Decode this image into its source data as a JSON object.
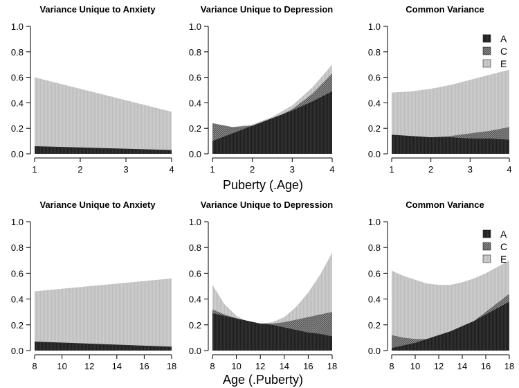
{
  "chart_data": [
    {
      "type": "area",
      "title": "Variance Unique to Anxiety",
      "x": [
        1,
        4
      ],
      "xticks": [
        "1",
        "2",
        "3",
        "4"
      ],
      "yticks": [
        "0.0",
        "0.2",
        "0.4",
        "0.6",
        "0.8",
        "1.0"
      ],
      "xlim": [
        1,
        4
      ],
      "ylim": [
        0,
        1
      ],
      "series": [
        {
          "name": "A",
          "values": [
            0.06,
            0.03
          ]
        },
        {
          "name": "C",
          "values": [
            0.0,
            0.0
          ]
        },
        {
          "name": "E",
          "values": [
            0.6,
            0.33
          ]
        }
      ],
      "legend": null
    },
    {
      "type": "area",
      "title": "Variance Unique to Depression",
      "x": [
        1,
        1.5,
        2,
        2.5,
        3,
        3.5,
        4
      ],
      "xticks": [
        "1",
        "2",
        "3",
        "4"
      ],
      "yticks": [
        "0.0",
        "0.2",
        "0.4",
        "0.6",
        "0.8",
        "1.0"
      ],
      "xlim": [
        1,
        4
      ],
      "ylim": [
        0,
        1
      ],
      "series": [
        {
          "name": "A",
          "values": [
            0.1,
            0.16,
            0.22,
            0.28,
            0.34,
            0.41,
            0.49
          ]
        },
        {
          "name": "C",
          "values": [
            0.24,
            0.21,
            0.22,
            0.27,
            0.35,
            0.47,
            0.63
          ]
        },
        {
          "name": "E",
          "values": [
            0.24,
            0.21,
            0.23,
            0.29,
            0.38,
            0.52,
            0.7
          ]
        }
      ],
      "legend": null
    },
    {
      "type": "area",
      "title": "Common Variance",
      "x": [
        1,
        1.5,
        2,
        2.5,
        3,
        3.5,
        4
      ],
      "xticks": [
        "1",
        "2",
        "3",
        "4"
      ],
      "yticks": [
        "0.0",
        "0.2",
        "0.4",
        "0.6",
        "0.8",
        "1.0"
      ],
      "xlim": [
        1,
        4
      ],
      "ylim": [
        0,
        1
      ],
      "series": [
        {
          "name": "A",
          "values": [
            0.15,
            0.14,
            0.13,
            0.13,
            0.12,
            0.12,
            0.11
          ]
        },
        {
          "name": "C",
          "values": [
            0.14,
            0.13,
            0.13,
            0.14,
            0.16,
            0.18,
            0.21
          ]
        },
        {
          "name": "E",
          "values": [
            0.48,
            0.49,
            0.51,
            0.54,
            0.58,
            0.62,
            0.66
          ]
        }
      ],
      "legend": [
        "A",
        "C",
        "E"
      ]
    },
    {
      "type": "area",
      "title": "Variance Unique to Anxiety",
      "x": [
        8,
        18
      ],
      "xticks": [
        "8",
        "10",
        "12",
        "14",
        "16",
        "18"
      ],
      "yticks": [
        "0.0",
        "0.2",
        "0.4",
        "0.6",
        "0.8",
        "1.0"
      ],
      "xlim": [
        8,
        18
      ],
      "ylim": [
        0,
        1
      ],
      "series": [
        {
          "name": "A",
          "values": [
            0.07,
            0.03
          ]
        },
        {
          "name": "C",
          "values": [
            0.0,
            0.0
          ]
        },
        {
          "name": "E",
          "values": [
            0.46,
            0.56
          ]
        }
      ],
      "legend": null
    },
    {
      "type": "area",
      "title": "Variance Unique to Depression",
      "x": [
        8,
        9,
        10,
        11,
        12,
        13,
        14,
        15,
        16,
        17,
        18
      ],
      "xticks": [
        "8",
        "10",
        "12",
        "14",
        "16",
        "18"
      ],
      "yticks": [
        "0.0",
        "0.2",
        "0.4",
        "0.6",
        "0.8",
        "1.0"
      ],
      "xlim": [
        8,
        18
      ],
      "ylim": [
        0,
        1
      ],
      "series": [
        {
          "name": "A",
          "values": [
            0.29,
            0.27,
            0.25,
            0.23,
            0.21,
            0.2,
            0.18,
            0.16,
            0.14,
            0.13,
            0.11
          ]
        },
        {
          "name": "C",
          "values": [
            0.32,
            0.28,
            0.25,
            0.22,
            0.21,
            0.21,
            0.22,
            0.24,
            0.26,
            0.28,
            0.3
          ]
        },
        {
          "name": "E",
          "values": [
            0.51,
            0.36,
            0.27,
            0.22,
            0.21,
            0.22,
            0.26,
            0.34,
            0.45,
            0.59,
            0.76
          ]
        }
      ],
      "legend": null
    },
    {
      "type": "area",
      "title": "Common Variance",
      "x": [
        8,
        9,
        10,
        11,
        12,
        13,
        14,
        15,
        16,
        17,
        18
      ],
      "xticks": [
        "8",
        "10",
        "12",
        "14",
        "16",
        "18"
      ],
      "yticks": [
        "0.0",
        "0.2",
        "0.4",
        "0.6",
        "0.8",
        "1.0"
      ],
      "xlim": [
        8,
        18
      ],
      "ylim": [
        0,
        1
      ],
      "series": [
        {
          "name": "A",
          "values": [
            0.02,
            0.04,
            0.06,
            0.09,
            0.12,
            0.15,
            0.19,
            0.23,
            0.28,
            0.33,
            0.38
          ]
        },
        {
          "name": "C",
          "values": [
            0.12,
            0.1,
            0.09,
            0.09,
            0.1,
            0.13,
            0.17,
            0.23,
            0.3,
            0.37,
            0.44
          ]
        },
        {
          "name": "E",
          "values": [
            0.62,
            0.58,
            0.55,
            0.52,
            0.51,
            0.51,
            0.53,
            0.56,
            0.6,
            0.65,
            0.7
          ]
        }
      ],
      "legend": [
        "A",
        "C",
        "E"
      ]
    }
  ],
  "axis_labels": {
    "top_xlabel": "Puberty (.Age)",
    "bottom_xlabel": "Age (.Puberty)"
  },
  "colors": {
    "A": "#1f1f1f",
    "C": "#575757",
    "E": "#cccccc",
    "axis": "#000000"
  }
}
